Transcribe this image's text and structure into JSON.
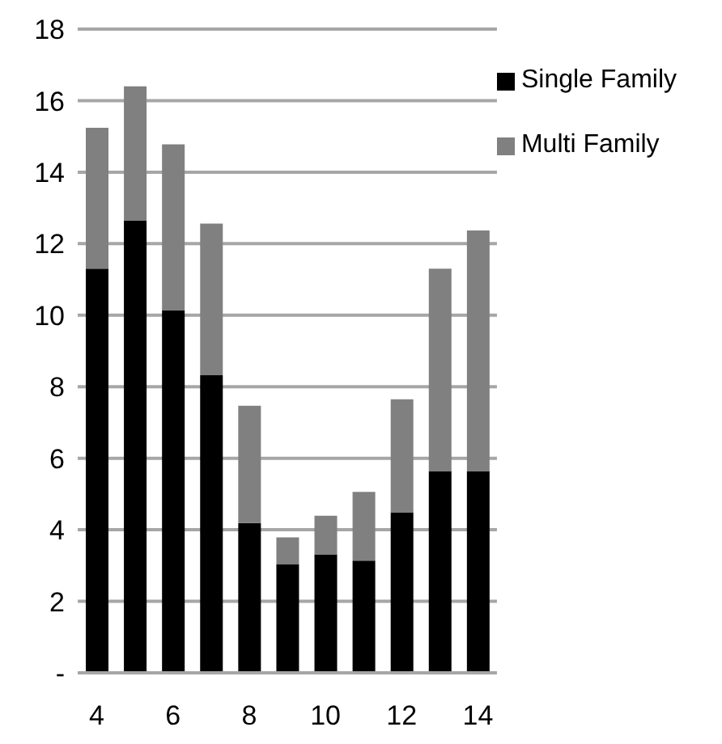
{
  "chart_data": {
    "type": "bar",
    "stacked": true,
    "categories": [
      "4",
      null,
      "6",
      null,
      "8",
      null,
      "10",
      null,
      "12",
      null,
      "14"
    ],
    "series": [
      {
        "name": "Single Family",
        "color": "#000000",
        "values": [
          11.3,
          12.65,
          10.13,
          8.32,
          4.19,
          3.04,
          3.31,
          3.14,
          4.49,
          5.64,
          5.64
        ]
      },
      {
        "name": "Multi Family",
        "color": "#808080",
        "values": [
          3.94,
          3.75,
          4.65,
          4.24,
          3.28,
          0.75,
          1.08,
          1.92,
          3.16,
          5.66,
          6.73
        ]
      }
    ],
    "ylim": [
      0,
      18
    ],
    "yticks": [
      {
        "value": 0,
        "label": "-"
      },
      2,
      4,
      6,
      8,
      10,
      12,
      14,
      16,
      18
    ],
    "grid": "y",
    "legend": "top right"
  }
}
